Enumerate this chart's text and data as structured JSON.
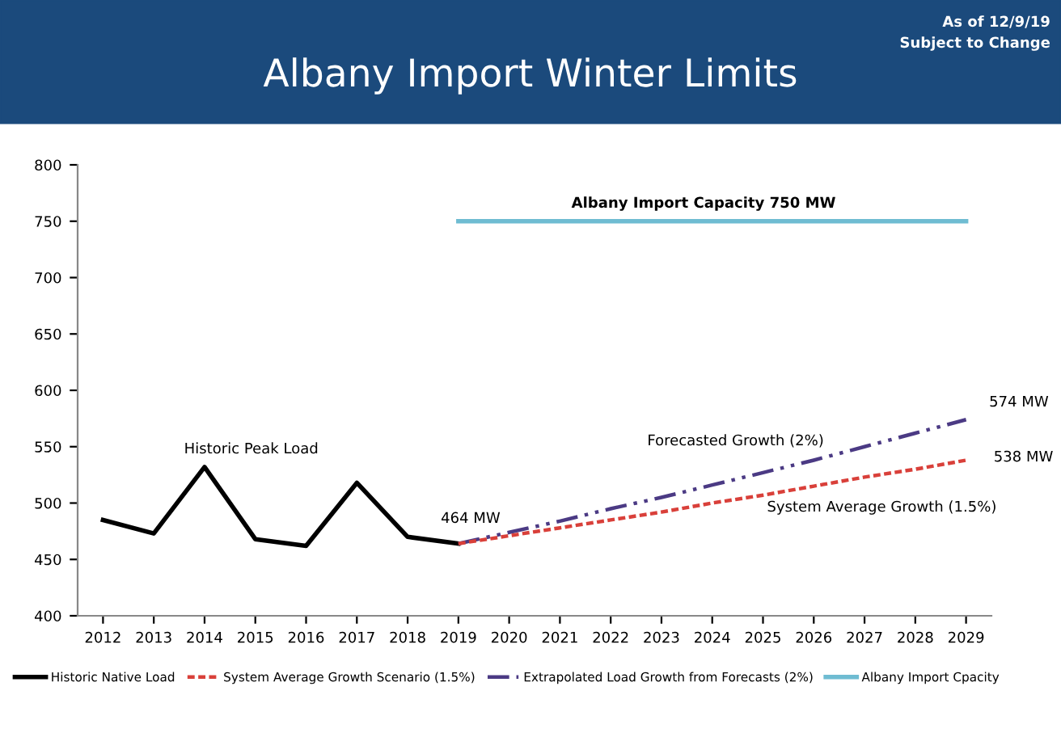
{
  "chart_data": {
    "type": "line",
    "title": "Albany Import Winter Limits",
    "categories": [
      "2012",
      "2013",
      "2014",
      "2015",
      "2016",
      "2017",
      "2018",
      "2019",
      "2020",
      "2021",
      "2022",
      "2023",
      "2024",
      "2025",
      "2026",
      "2027",
      "2028",
      "2029"
    ],
    "series": [
      {
        "name": "Historic Native Load",
        "color": "#000000",
        "line_style": "solid",
        "values": [
          485,
          473,
          532,
          468,
          462,
          518,
          470,
          464,
          null,
          null,
          null,
          null,
          null,
          null,
          null,
          null,
          null,
          null
        ]
      },
      {
        "name": "System Average Growth Scenario (1.5%)",
        "color": "#d9403a",
        "line_style": "dashed",
        "values": [
          null,
          null,
          null,
          null,
          null,
          null,
          null,
          464,
          471,
          478,
          485,
          492,
          500,
          507,
          515,
          523,
          530,
          538
        ]
      },
      {
        "name": "Extrapolated Load Growth from Forecasts (2%)",
        "color": "#4b3a84",
        "line_style": "dashdot",
        "values": [
          null,
          null,
          null,
          null,
          null,
          null,
          null,
          464,
          474,
          484,
          495,
          505,
          516,
          527,
          538,
          550,
          562,
          574
        ]
      },
      {
        "name": "Albany Import Cpacity",
        "color": "#6fbcd2",
        "line_style": "solid",
        "values": [
          null,
          null,
          null,
          null,
          null,
          null,
          null,
          750,
          750,
          750,
          750,
          750,
          750,
          750,
          750,
          750,
          750,
          750
        ]
      }
    ],
    "ylim": [
      400,
      800
    ],
    "yticks": [
      400,
      450,
      500,
      550,
      600,
      650,
      700,
      750,
      800
    ],
    "grid": false,
    "legend": "bottom",
    "marker": "none",
    "annotations": [
      "As of 12/9/19",
      "Subject to Change",
      "Albany Import Capacity 750 MW",
      "Historic Peak Load",
      "464 MW",
      "Forecasted Growth (2%)",
      "System Average Growth (1.5%)",
      "574 MW",
      "538 MW"
    ]
  }
}
